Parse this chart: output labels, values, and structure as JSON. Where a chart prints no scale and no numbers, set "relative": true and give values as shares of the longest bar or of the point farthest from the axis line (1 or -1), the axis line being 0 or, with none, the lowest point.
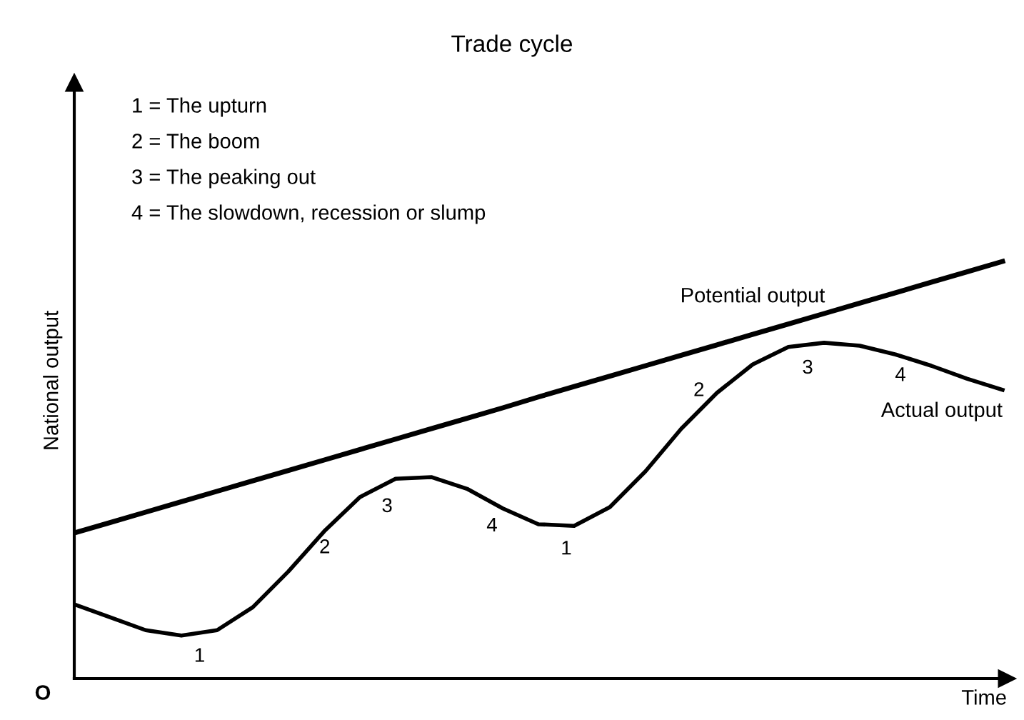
{
  "chart_data": {
    "type": "line",
    "relative": true,
    "title": "Trade cycle",
    "xlabel": "Time",
    "ylabel": "National output",
    "categories": [
      null,
      null,
      null,
      null,
      null,
      null,
      null,
      null,
      null,
      null,
      null,
      null,
      null,
      null,
      null,
      null,
      null,
      null,
      null,
      null,
      null,
      null,
      null,
      null,
      null,
      null,
      null
    ],
    "series": [
      {
        "name": "Potential output",
        "color": "#000000",
        "values": [
          0.349,
          0.374,
          0.399,
          0.424,
          0.449,
          0.474,
          0.499,
          0.524,
          0.549,
          0.574,
          0.599,
          0.624,
          0.649,
          0.675,
          0.7,
          0.725,
          0.75,
          0.775,
          0.8,
          0.825,
          0.85,
          0.875,
          0.9,
          0.925,
          0.95,
          0.975,
          1.0
        ]
      },
      {
        "name": "Actual output",
        "color": "#000000",
        "values": [
          0.178,
          0.147,
          0.116,
          0.103,
          0.116,
          0.171,
          0.257,
          0.353,
          0.435,
          0.479,
          0.483,
          0.455,
          0.408,
          0.37,
          0.366,
          0.411,
          0.497,
          0.599,
          0.685,
          0.753,
          0.795,
          0.805,
          0.798,
          0.777,
          0.75,
          0.719,
          0.692
        ]
      }
    ],
    "annotations": [
      "1 = The upturn",
      "2 = The boom",
      "3 = The peaking out",
      "4 = The slowdown, recession or slump",
      "O",
      "1",
      "2",
      "3",
      "4",
      "1",
      "2",
      "3",
      "4"
    ],
    "marker": "none",
    "line_style": "solid",
    "legend": false
  }
}
